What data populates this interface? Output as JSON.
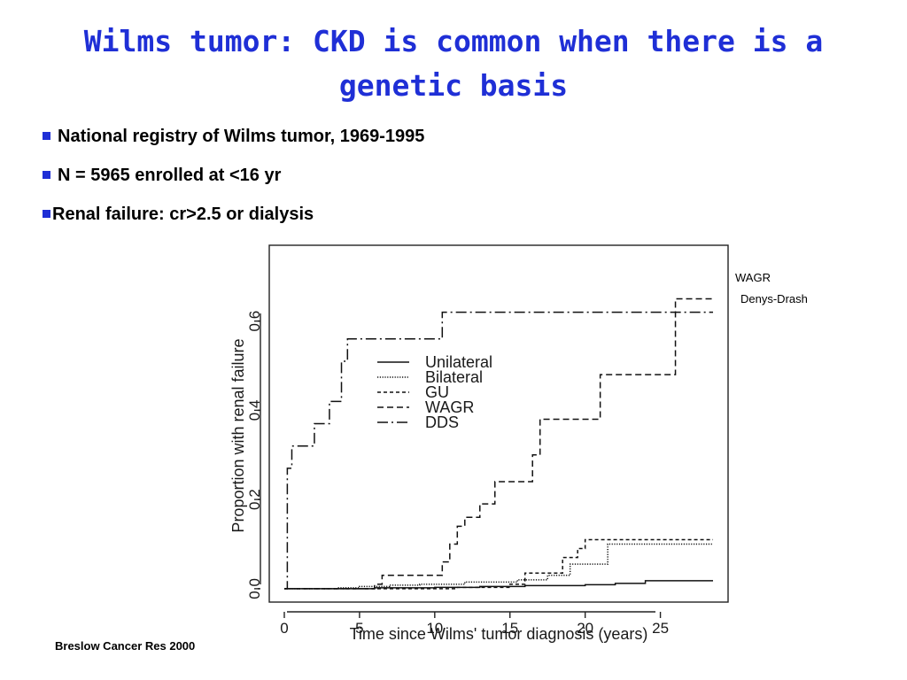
{
  "slide": {
    "title": "Wilms tumor: CKD is common when there is a genetic basis",
    "bullets": [
      "National registry of Wilms tumor, 1969-1995",
      "N = 5965 enrolled at <16 yr",
      "Renal failure: cr>2.5 or dialysis"
    ],
    "annotations": {
      "wagr": "WAGR",
      "dds": "Denys-Drash"
    },
    "citation": "Breslow Cancer Res 2000",
    "colors": {
      "title": "#1f2fd6",
      "bullet_marker": "#1f2fd6",
      "text": "#000000"
    }
  },
  "chart_data": {
    "type": "line",
    "step": true,
    "xlabel": "Time since Wilms' tumor diagnosis (years)",
    "ylabel": "Proportion with renal failure",
    "xlim": [
      -1,
      29.5
    ],
    "ylim": [
      -0.03,
      0.77
    ],
    "xticks": [
      0,
      5,
      10,
      15,
      20,
      25
    ],
    "yticks": [
      0.0,
      0.2,
      0.4,
      0.6
    ],
    "ytick_labels": [
      "0.0",
      "0.2",
      "0.4",
      "0.6"
    ],
    "legend_position": "upper-center",
    "grid": false,
    "series": [
      {
        "name": "Unilateral",
        "dash": "solid",
        "x": [
          0,
          6,
          10,
          13,
          16,
          20,
          22,
          24,
          28.5
        ],
        "y": [
          0.0,
          0.002,
          0.003,
          0.005,
          0.007,
          0.009,
          0.012,
          0.018,
          0.018
        ]
      },
      {
        "name": "Bilateral",
        "dash": "dotted",
        "x": [
          0,
          3.5,
          5,
          7,
          9,
          12,
          15.5,
          17.5,
          19,
          21.5,
          28.5
        ],
        "y": [
          0.0,
          0.002,
          0.005,
          0.008,
          0.01,
          0.015,
          0.02,
          0.03,
          0.055,
          0.1,
          0.1
        ]
      },
      {
        "name": "GU",
        "dash": "dashed-short",
        "x": [
          0,
          11.5,
          15,
          16,
          18.5,
          19.5,
          20,
          28.5
        ],
        "y": [
          0.0,
          0.003,
          0.01,
          0.035,
          0.07,
          0.09,
          0.11,
          0.11
        ]
      },
      {
        "name": "WAGR",
        "dash": "dashed-medium",
        "x": [
          0,
          6,
          6.5,
          10.5,
          11,
          11.5,
          12,
          13,
          14,
          15.5,
          16.5,
          17,
          21,
          26,
          28.5
        ],
        "y": [
          0.0,
          0.01,
          0.03,
          0.06,
          0.1,
          0.14,
          0.16,
          0.19,
          0.24,
          0.24,
          0.3,
          0.38,
          0.48,
          0.65,
          0.65
        ]
      },
      {
        "name": "DDS",
        "dash": "dashed-long",
        "x": [
          0,
          0.2,
          0.5,
          2,
          3,
          3.8,
          4.2,
          10.5,
          28.5
        ],
        "y": [
          0.0,
          0.27,
          0.32,
          0.37,
          0.42,
          0.51,
          0.56,
          0.62,
          0.62
        ]
      }
    ]
  }
}
